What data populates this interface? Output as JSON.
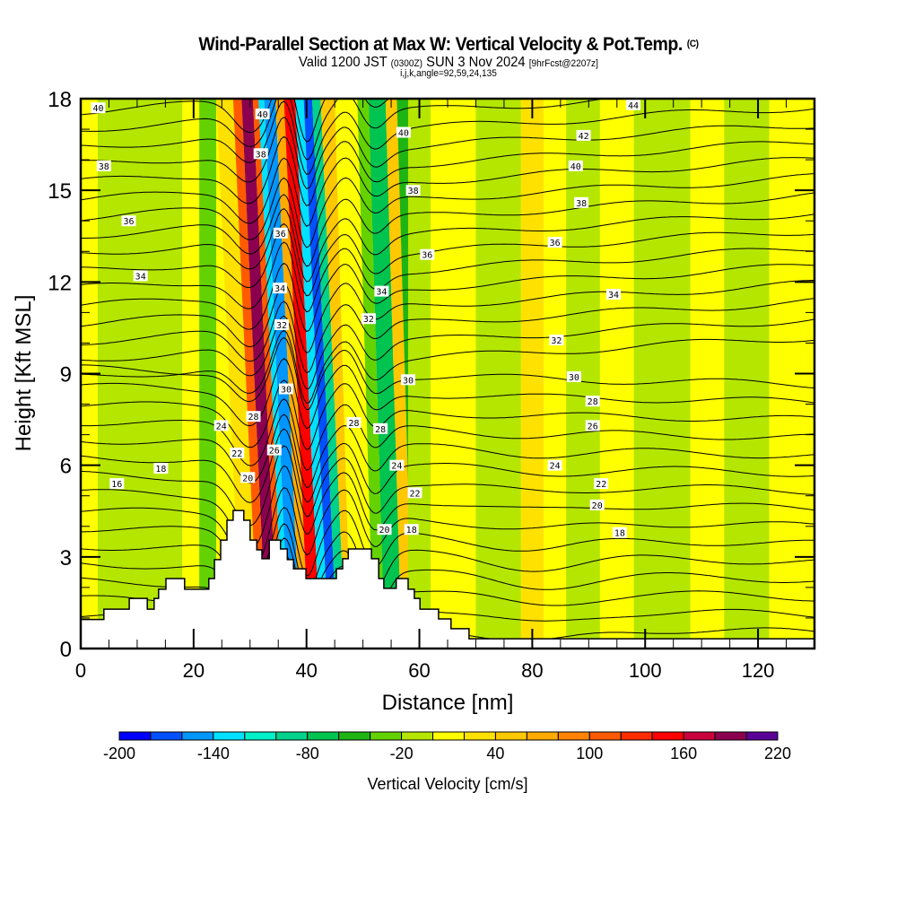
{
  "header": {
    "title": "Wind-Parallel Section at Max W: Vertical Velocity & Pot.Temp.",
    "title_mark": "(C)",
    "subtitle_main": "Valid 1200 JST",
    "subtitle_utc": "(0300Z)",
    "subtitle_date": "SUN 3 Nov 2024",
    "subtitle_run": "[9hrFcst@2207z]",
    "params": "i,j,k,angle=92,59,24,135"
  },
  "chart_data": {
    "type": "heatmap",
    "title": "Wind-Parallel Section at Max W: Vertical Velocity & Pot.Temp.",
    "xlabel": "Distance [nm]",
    "ylabel": "Height [Kft MSL]",
    "xlim": [
      0,
      130
    ],
    "ylim": [
      0,
      18
    ],
    "xticks": [
      "0",
      "20",
      "40",
      "60",
      "80",
      "100",
      "120"
    ],
    "xtick_values": [
      0,
      20,
      40,
      60,
      80,
      100,
      120
    ],
    "yticks": [
      "0",
      "3",
      "6",
      "9",
      "12",
      "15",
      "18"
    ],
    "ytick_values": [
      0,
      3,
      6,
      9,
      12,
      15,
      18
    ],
    "colorbar": {
      "label": "Vertical Velocity [cm/s]",
      "min": -200,
      "max": 220,
      "step": 20,
      "tick_labels": [
        "-200",
        "-140",
        "-80",
        "-20",
        "40",
        "100",
        "160",
        "220"
      ],
      "tick_values": [
        -200,
        -140,
        -80,
        -20,
        40,
        100,
        160,
        220
      ],
      "colors": [
        "#0000ff",
        "#0050ff",
        "#0096ff",
        "#00e1ff",
        "#00f0c8",
        "#00d28c",
        "#00c350",
        "#1eb414",
        "#64d200",
        "#b4e600",
        "#ffff00",
        "#ffe100",
        "#ffc800",
        "#ffaa00",
        "#ff8200",
        "#ff5a00",
        "#ff2d00",
        "#ff0000",
        "#c8003c",
        "#8c0050",
        "#5a0096"
      ]
    },
    "vertical_velocity_bands": [
      {
        "x": [
          0,
          3
        ],
        "value": 10
      },
      {
        "x": [
          3,
          18
        ],
        "value": -10
      },
      {
        "x": [
          18,
          21
        ],
        "value": 10
      },
      {
        "x": [
          21,
          24
        ],
        "value": -30
      },
      {
        "x": [
          24,
          27
        ],
        "value": 30
      },
      {
        "x": [
          27,
          28.5
        ],
        "value": 110
      },
      {
        "x": [
          28.5,
          30.5
        ],
        "value": 190
      },
      {
        "x": [
          30.5,
          31.5
        ],
        "value": 110
      },
      {
        "x": [
          31.5,
          32.5
        ],
        "value": -130
      },
      {
        "x": [
          32.5,
          34.5
        ],
        "value": -150
      },
      {
        "x": [
          34.5,
          36
        ],
        "value": 70
      },
      {
        "x": [
          36,
          38
        ],
        "value": 150
      },
      {
        "x": [
          38,
          39.5
        ],
        "value": -130
      },
      {
        "x": [
          39.5,
          41
        ],
        "value": -170
      },
      {
        "x": [
          41,
          42.5
        ],
        "value": -90
      },
      {
        "x": [
          42.5,
          45
        ],
        "value": 50
      },
      {
        "x": [
          45,
          49
        ],
        "value": 10
      },
      {
        "x": [
          49,
          51
        ],
        "value": -30
      },
      {
        "x": [
          51,
          54
        ],
        "value": -70
      },
      {
        "x": [
          54,
          56
        ],
        "value": 50
      },
      {
        "x": [
          56,
          58
        ],
        "value": -50
      },
      {
        "x": [
          58,
          62
        ],
        "value": -10
      },
      {
        "x": [
          62,
          70
        ],
        "value": 10
      },
      {
        "x": [
          70,
          78
        ],
        "value": -10
      },
      {
        "x": [
          78,
          82
        ],
        "value": 30
      },
      {
        "x": [
          82,
          86
        ],
        "value": 10
      },
      {
        "x": [
          86,
          92
        ],
        "value": -10
      },
      {
        "x": [
          92,
          98
        ],
        "value": 10
      },
      {
        "x": [
          98,
          108
        ],
        "value": -10
      },
      {
        "x": [
          108,
          114
        ],
        "value": 10
      },
      {
        "x": [
          114,
          122
        ],
        "value": -10
      },
      {
        "x": [
          122,
          130
        ],
        "value": 10
      }
    ],
    "isentrope_labels": [
      {
        "text": "40",
        "x": 3.1,
        "y": 17.7
      },
      {
        "text": "38",
        "x": 4.1,
        "y": 15.8
      },
      {
        "text": "36",
        "x": 8.5,
        "y": 14.0
      },
      {
        "text": "34",
        "x": 10.6,
        "y": 12.2
      },
      {
        "text": "18",
        "x": 14.2,
        "y": 5.9
      },
      {
        "text": "16",
        "x": 6.4,
        "y": 5.4
      },
      {
        "text": "24",
        "x": 24.9,
        "y": 7.3
      },
      {
        "text": "28",
        "x": 30.6,
        "y": 7.6
      },
      {
        "text": "22",
        "x": 27.7,
        "y": 6.4
      },
      {
        "text": "20",
        "x": 29.6,
        "y": 5.6
      },
      {
        "text": "26",
        "x": 34.3,
        "y": 6.5
      },
      {
        "text": "40",
        "x": 32.2,
        "y": 17.5
      },
      {
        "text": "38",
        "x": 31.9,
        "y": 16.2
      },
      {
        "text": "36",
        "x": 35.4,
        "y": 13.6
      },
      {
        "text": "34",
        "x": 35.3,
        "y": 11.8
      },
      {
        "text": "32",
        "x": 35.6,
        "y": 10.6
      },
      {
        "text": "30",
        "x": 36.4,
        "y": 8.5
      },
      {
        "text": "40",
        "x": 57.2,
        "y": 16.9
      },
      {
        "text": "38",
        "x": 58.9,
        "y": 15.0
      },
      {
        "text": "36",
        "x": 61.4,
        "y": 12.9
      },
      {
        "text": "34",
        "x": 53.3,
        "y": 11.7
      },
      {
        "text": "32",
        "x": 51.0,
        "y": 10.8
      },
      {
        "text": "30",
        "x": 58.0,
        "y": 8.8
      },
      {
        "text": "28",
        "x": 48.4,
        "y": 7.4
      },
      {
        "text": "28",
        "x": 53.1,
        "y": 7.2
      },
      {
        "text": "24",
        "x": 56.0,
        "y": 6.0
      },
      {
        "text": "22",
        "x": 59.2,
        "y": 5.1
      },
      {
        "text": "20",
        "x": 53.8,
        "y": 3.9
      },
      {
        "text": "18",
        "x": 58.6,
        "y": 3.9
      },
      {
        "text": "44",
        "x": 97.9,
        "y": 17.8
      },
      {
        "text": "42",
        "x": 89.1,
        "y": 16.8
      },
      {
        "text": "40",
        "x": 87.7,
        "y": 15.8
      },
      {
        "text": "38",
        "x": 88.7,
        "y": 14.6
      },
      {
        "text": "36",
        "x": 84.0,
        "y": 13.3
      },
      {
        "text": "34",
        "x": 94.4,
        "y": 11.6
      },
      {
        "text": "32",
        "x": 84.3,
        "y": 10.1
      },
      {
        "text": "30",
        "x": 87.4,
        "y": 8.9
      },
      {
        "text": "28",
        "x": 90.7,
        "y": 8.1
      },
      {
        "text": "26",
        "x": 90.7,
        "y": 7.3
      },
      {
        "text": "24",
        "x": 84.0,
        "y": 6.0
      },
      {
        "text": "22",
        "x": 92.2,
        "y": 5.4
      },
      {
        "text": "20",
        "x": 91.5,
        "y": 4.7
      },
      {
        "text": "18",
        "x": 95.5,
        "y": 3.8
      }
    ],
    "terrain": [
      [
        0,
        0.95
      ],
      [
        4.1,
        0.95
      ],
      [
        4.1,
        1.29
      ],
      [
        8.6,
        1.29
      ],
      [
        8.6,
        1.64
      ],
      [
        11.8,
        1.64
      ],
      [
        11.8,
        1.29
      ],
      [
        13.0,
        1.29
      ],
      [
        13.0,
        1.64
      ],
      [
        13.8,
        1.64
      ],
      [
        13.8,
        1.94
      ],
      [
        15.1,
        1.94
      ],
      [
        15.1,
        2.29
      ],
      [
        18.4,
        2.29
      ],
      [
        18.4,
        1.94
      ],
      [
        22.7,
        1.94
      ],
      [
        22.7,
        2.29
      ],
      [
        23.7,
        2.29
      ],
      [
        23.7,
        2.91
      ],
      [
        24.8,
        2.91
      ],
      [
        24.8,
        3.55
      ],
      [
        25.9,
        3.55
      ],
      [
        25.9,
        4.2
      ],
      [
        27.0,
        4.2
      ],
      [
        27.0,
        4.52
      ],
      [
        28.9,
        4.52
      ],
      [
        28.9,
        4.2
      ],
      [
        30.0,
        4.2
      ],
      [
        30.0,
        3.55
      ],
      [
        31.2,
        3.55
      ],
      [
        31.2,
        3.23
      ],
      [
        32.1,
        3.23
      ],
      [
        32.1,
        2.94
      ],
      [
        33.4,
        2.94
      ],
      [
        33.4,
        3.55
      ],
      [
        35.4,
        3.55
      ],
      [
        35.4,
        3.26
      ],
      [
        36.6,
        3.26
      ],
      [
        36.6,
        2.91
      ],
      [
        37.7,
        2.91
      ],
      [
        37.7,
        2.61
      ],
      [
        39.9,
        2.61
      ],
      [
        39.9,
        2.29
      ],
      [
        45.3,
        2.29
      ],
      [
        45.3,
        2.61
      ],
      [
        46.4,
        2.61
      ],
      [
        46.4,
        2.94
      ],
      [
        47.4,
        2.94
      ],
      [
        47.4,
        3.26
      ],
      [
        51.5,
        3.26
      ],
      [
        51.5,
        2.94
      ],
      [
        52.8,
        2.94
      ],
      [
        52.8,
        2.29
      ],
      [
        53.7,
        2.29
      ],
      [
        53.7,
        1.97
      ],
      [
        55.9,
        1.97
      ],
      [
        55.9,
        2.29
      ],
      [
        58.0,
        2.29
      ],
      [
        58.0,
        1.94
      ],
      [
        59.1,
        1.94
      ],
      [
        59.1,
        1.64
      ],
      [
        60.1,
        1.64
      ],
      [
        60.1,
        1.29
      ],
      [
        63.4,
        1.29
      ],
      [
        63.4,
        0.97
      ],
      [
        65.6,
        0.97
      ],
      [
        65.6,
        0.65
      ],
      [
        68.8,
        0.65
      ],
      [
        68.8,
        0.32
      ],
      [
        130,
        0.32
      ]
    ]
  }
}
